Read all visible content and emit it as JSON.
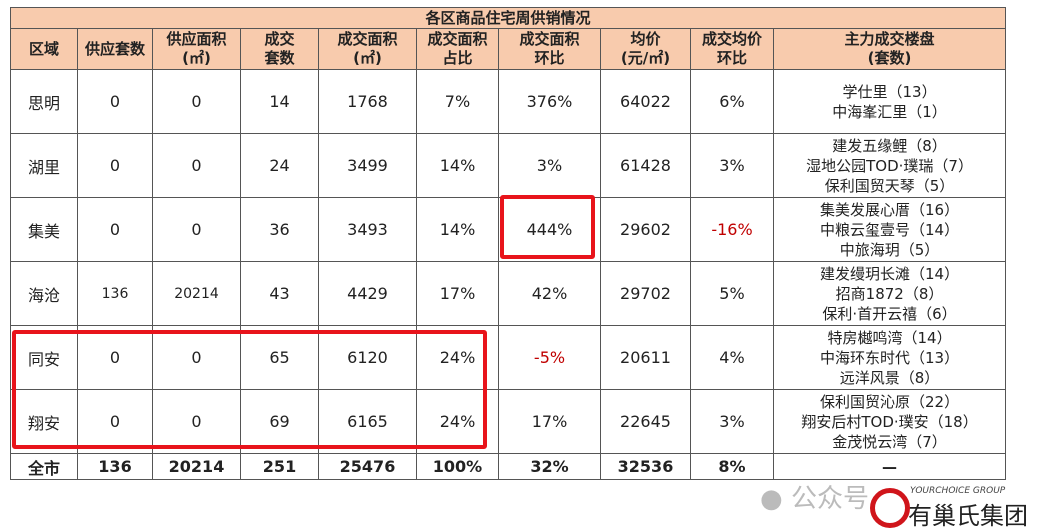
{
  "title": "各区商品住宅周供销情况",
  "headers": [
    "区域",
    "供应套数",
    "供应面积\n(㎡)",
    "成交\n套数",
    "成交面积\n(㎡)",
    "成交面积\n占比",
    "成交面积\n环比",
    "均价\n(元/㎡)",
    "成交均价\n环比",
    "主力成交楼盘\n(套数)"
  ],
  "rows": [
    {
      "district": "思明",
      "supply_units": "0",
      "supply_area": "0",
      "deal_units": "14",
      "deal_area": "1768",
      "share": "7%",
      "area_mom": "376%",
      "avg_price": "64022",
      "price_mom": "6%",
      "projects": [
        "学仕里（13）",
        "中海峯汇里（1）"
      ]
    },
    {
      "district": "湖里",
      "supply_units": "0",
      "supply_area": "0",
      "deal_units": "24",
      "deal_area": "3499",
      "share": "14%",
      "area_mom": "3%",
      "avg_price": "61428",
      "price_mom": "3%",
      "projects": [
        "建发五缘鲤（8）",
        "湿地公园TOD·璞瑞（7）",
        "保利国贸天琴（5）"
      ]
    },
    {
      "district": "集美",
      "supply_units": "0",
      "supply_area": "0",
      "deal_units": "36",
      "deal_area": "3493",
      "share": "14%",
      "area_mom": "444%",
      "avg_price": "29602",
      "price_mom": "-16%",
      "projects": [
        "集美发展心厝（16）",
        "中粮云玺壹号（14）",
        "中旅海玥（5）"
      ]
    },
    {
      "district": "海沧",
      "supply_units": "136",
      "supply_area": "20214",
      "deal_units": "43",
      "deal_area": "4429",
      "share": "17%",
      "area_mom": "42%",
      "avg_price": "29702",
      "price_mom": "5%",
      "projects": [
        "建发缦玥长滩（14）",
        "招商1872（8）",
        "保利·首开云禧（6）"
      ]
    },
    {
      "district": "同安",
      "supply_units": "0",
      "supply_area": "0",
      "deal_units": "65",
      "deal_area": "6120",
      "share": "24%",
      "area_mom": "-5%",
      "avg_price": "20611",
      "price_mom": "4%",
      "projects": [
        "特房樾鸣湾（14）",
        "中海环东时代（13）",
        "远洋风景（8）"
      ]
    },
    {
      "district": "翔安",
      "supply_units": "0",
      "supply_area": "0",
      "deal_units": "69",
      "deal_area": "6165",
      "share": "24%",
      "area_mom": "17%",
      "avg_price": "22645",
      "price_mom": "3%",
      "projects": [
        "保利国贸沁原（22）",
        "翔安后村TOD·璞安（18）",
        "金茂悦云湾（7）"
      ]
    }
  ],
  "total": {
    "district": "全市",
    "supply_units": "136",
    "supply_area": "20214",
    "deal_units": "251",
    "deal_area": "25476",
    "share": "100%",
    "area_mom": "32%",
    "avg_price": "32536",
    "price_mom": "8%",
    "projects": "—"
  },
  "watermark": "公众号",
  "logo": {
    "en": "YOURCHOICE GROUP",
    "cn": "有巢氏集团"
  },
  "colors": {
    "header_bg": "#f8cbad",
    "highlight": "#e8141b",
    "negative": "#c00000"
  }
}
